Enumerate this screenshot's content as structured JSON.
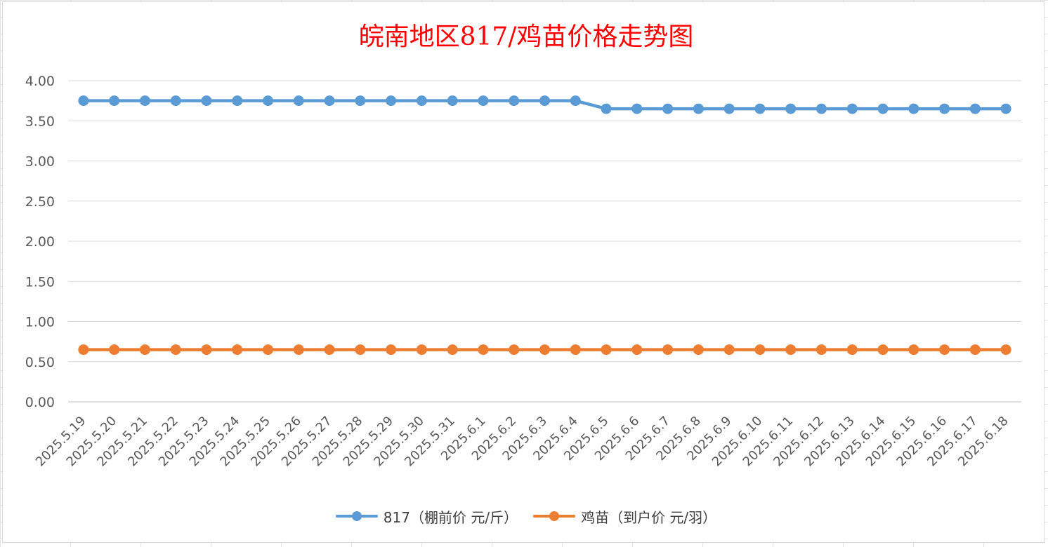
{
  "chart_data": {
    "type": "line",
    "title": "皖南地区817/鸡苗价格走势图",
    "categories": [
      "2025.5.19",
      "2025.5.20",
      "2025.5.21",
      "2025.5.22",
      "2025.5.23",
      "2025.5.24",
      "2025.5.25",
      "2025.5.26",
      "2025.5.27",
      "2025.5.28",
      "2025.5.29",
      "2025.5.30",
      "2025.5.31",
      "2025.6.1",
      "2025.6.2",
      "2025.6.3",
      "2025.6.4",
      "2025.6.5",
      "2025.6.6",
      "2025.6.7",
      "2025.6.8",
      "2025.6.9",
      "2025.6.10",
      "2025.6.11",
      "2025.6.12",
      "2025.6.13",
      "2025.6.14",
      "2025.6.15",
      "2025.6.16",
      "2025.6.17",
      "2025.6.18"
    ],
    "series": [
      {
        "name": "817（棚前价 元/斤）",
        "color": "#5b9bd5",
        "values": [
          3.75,
          3.75,
          3.75,
          3.75,
          3.75,
          3.75,
          3.75,
          3.75,
          3.75,
          3.75,
          3.75,
          3.75,
          3.75,
          3.75,
          3.75,
          3.75,
          3.75,
          3.65,
          3.65,
          3.65,
          3.65,
          3.65,
          3.65,
          3.65,
          3.65,
          3.65,
          3.65,
          3.65,
          3.65,
          3.65,
          3.65
        ]
      },
      {
        "name": "鸡苗（到户价 元/羽）",
        "color": "#ed7d31",
        "values": [
          0.65,
          0.65,
          0.65,
          0.65,
          0.65,
          0.65,
          0.65,
          0.65,
          0.65,
          0.65,
          0.65,
          0.65,
          0.65,
          0.65,
          0.65,
          0.65,
          0.65,
          0.65,
          0.65,
          0.65,
          0.65,
          0.65,
          0.65,
          0.65,
          0.65,
          0.65,
          0.65,
          0.65,
          0.65,
          0.65,
          0.65
        ]
      }
    ],
    "xlabel": "",
    "ylabel": "",
    "ylim": [
      0,
      4
    ],
    "yticks": [
      "0.00",
      "0.50",
      "1.00",
      "1.50",
      "2.00",
      "2.50",
      "3.00",
      "3.50",
      "4.00"
    ],
    "grid": true,
    "legend_position": "bottom"
  }
}
